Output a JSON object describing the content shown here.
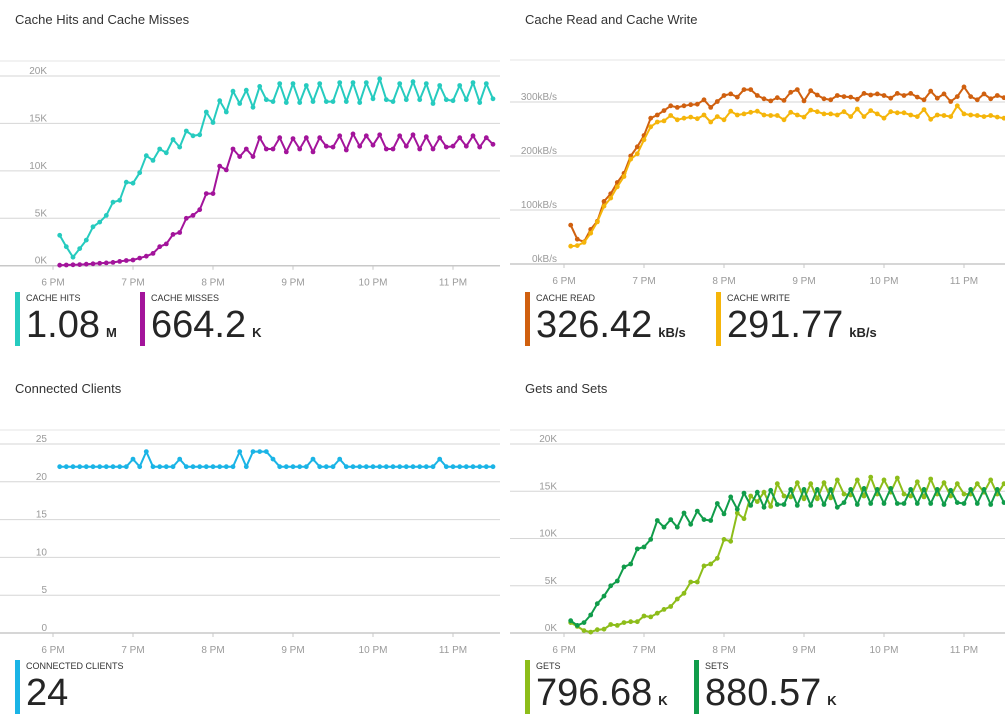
{
  "colors": {
    "cache_hits": "#26cbbf",
    "cache_misses": "#a3149b",
    "cache_read": "#d0600f",
    "cache_write": "#f5b50a",
    "connected_clients": "#1ab4e6",
    "gets": "#8dbd1a",
    "sets": "#109c4a",
    "grid": "#d6d6d6",
    "axis_text": "#9a9a9a"
  },
  "panels": [
    {
      "title": "Cache Hits and Cache Misses",
      "legend": [
        {
          "label": "CACHE HITS",
          "value": "1.08",
          "unit": "M"
        },
        {
          "label": "CACHE MISSES",
          "value": "664.2",
          "unit": "K"
        }
      ]
    },
    {
      "title": "Cache Read and Cache Write",
      "legend": [
        {
          "label": "CACHE READ",
          "value": "326.42",
          "unit": "kB/s"
        },
        {
          "label": "CACHE WRITE",
          "value": "291.77",
          "unit": "kB/s"
        }
      ]
    },
    {
      "title": "Connected Clients",
      "legend": [
        {
          "label": "CONNECTED CLIENTS",
          "value": "24",
          "unit": ""
        }
      ]
    },
    {
      "title": "Gets and Sets",
      "legend": [
        {
          "label": "GETS",
          "value": "796.68",
          "unit": "K"
        },
        {
          "label": "SETS",
          "value": "880.57",
          "unit": "K"
        }
      ]
    }
  ],
  "chart_data": [
    {
      "type": "line",
      "title": "Cache Hits and Cache Misses",
      "grid": true,
      "xticks": [
        "6 PM",
        "7 PM",
        "8 PM",
        "9 PM",
        "10 PM",
        "11 PM"
      ],
      "yticks": [
        {
          "value": 0,
          "label": "0K"
        },
        {
          "value": 5000,
          "label": "5K"
        },
        {
          "value": 10000,
          "label": "10K"
        },
        {
          "value": 15000,
          "label": "15K"
        },
        {
          "value": 20000,
          "label": "20K"
        }
      ],
      "x": [
        "6:05 PM",
        "6:10 PM",
        "6:15 PM",
        "6:20 PM",
        "6:25 PM",
        "6:30 PM",
        "6:35 PM",
        "6:40 PM",
        "6:45 PM",
        "6:50 PM",
        "6:55 PM",
        "7:00 PM",
        "7:05 PM",
        "7:10 PM",
        "7:15 PM",
        "7:20 PM",
        "7:25 PM",
        "7:30 PM",
        "7:35 PM",
        "7:40 PM",
        "7:45 PM",
        "7:50 PM",
        "7:55 PM",
        "8:00 PM",
        "8:05 PM",
        "8:10 PM",
        "8:15 PM",
        "8:20 PM",
        "8:25 PM",
        "8:30 PM",
        "8:35 PM",
        "8:40 PM",
        "8:45 PM",
        "8:50 PM",
        "8:55 PM",
        "9:00 PM",
        "9:05 PM",
        "9:10 PM",
        "9:15 PM",
        "9:20 PM",
        "9:25 PM",
        "9:30 PM",
        "9:35 PM",
        "9:40 PM",
        "9:45 PM",
        "9:50 PM",
        "9:55 PM",
        "10:00 PM",
        "10:05 PM",
        "10:10 PM",
        "10:15 PM",
        "10:20 PM",
        "10:25 PM",
        "10:30 PM",
        "10:35 PM",
        "10:40 PM",
        "10:45 PM",
        "10:50 PM",
        "10:55 PM",
        "11:00 PM",
        "11:05 PM",
        "11:10 PM",
        "11:15 PM",
        "11:20 PM",
        "11:25 PM",
        "11:30 PM"
      ],
      "series": [
        {
          "name": "CACHE HITS",
          "color_key": "cache_hits",
          "values": [
            3200,
            2000,
            900,
            1800,
            2700,
            4100,
            4600,
            5300,
            6700,
            6900,
            8800,
            8700,
            9800,
            11600,
            11100,
            12300,
            11900,
            13300,
            12500,
            14200,
            13700,
            13800,
            16200,
            15100,
            17400,
            16200,
            18400,
            17100,
            18500,
            16700,
            18900,
            17500,
            17300,
            19200,
            17200,
            19200,
            17200,
            19000,
            17300,
            19200,
            17300,
            17300,
            19300,
            17300,
            19300,
            17200,
            19300,
            17600,
            19700,
            17500,
            17300,
            19200,
            17500,
            19400,
            17500,
            19200,
            17100,
            19000,
            17500,
            17400,
            19000,
            17500,
            19300,
            17200,
            19200,
            17600
          ]
        },
        {
          "name": "CACHE MISSES",
          "color_key": "cache_misses",
          "values": [
            50,
            70,
            100,
            120,
            160,
            200,
            250,
            300,
            350,
            450,
            550,
            600,
            800,
            1000,
            1300,
            2000,
            2300,
            3300,
            3500,
            5000,
            5300,
            5900,
            7600,
            7600,
            10500,
            10100,
            12300,
            11500,
            12300,
            11500,
            13500,
            12300,
            12300,
            13500,
            12000,
            13400,
            12300,
            13500,
            12000,
            13500,
            12600,
            12500,
            13700,
            12200,
            13900,
            12600,
            13700,
            12700,
            13800,
            12300,
            12300,
            13700,
            12600,
            13800,
            12300,
            13600,
            12300,
            13500,
            12500,
            12600,
            13500,
            12600,
            13700,
            12500,
            13500,
            12800
          ]
        }
      ]
    },
    {
      "type": "line",
      "title": "Cache Read and Cache Write",
      "grid": true,
      "xticks": [
        "6 PM",
        "7 PM",
        "8 PM",
        "9 PM",
        "10 PM",
        "11 PM"
      ],
      "yticks": [
        {
          "value": 0,
          "label": "0kB/s"
        },
        {
          "value": 100,
          "label": "100kB/s"
        },
        {
          "value": 200,
          "label": "200kB/s"
        },
        {
          "value": 300,
          "label": "300kB/s"
        }
      ],
      "x": [
        "6:05 PM",
        "6:10 PM",
        "6:15 PM",
        "6:20 PM",
        "6:25 PM",
        "6:30 PM",
        "6:35 PM",
        "6:40 PM",
        "6:45 PM",
        "6:50 PM",
        "6:55 PM",
        "7:00 PM",
        "7:05 PM",
        "7:10 PM",
        "7:15 PM",
        "7:20 PM",
        "7:25 PM",
        "7:30 PM",
        "7:35 PM",
        "7:40 PM",
        "7:45 PM",
        "7:50 PM",
        "7:55 PM",
        "8:00 PM",
        "8:05 PM",
        "8:10 PM",
        "8:15 PM",
        "8:20 PM",
        "8:25 PM",
        "8:30 PM",
        "8:35 PM",
        "8:40 PM",
        "8:45 PM",
        "8:50 PM",
        "8:55 PM",
        "9:00 PM",
        "9:05 PM",
        "9:10 PM",
        "9:15 PM",
        "9:20 PM",
        "9:25 PM",
        "9:30 PM",
        "9:35 PM",
        "9:40 PM",
        "9:45 PM",
        "9:50 PM",
        "9:55 PM",
        "10:00 PM",
        "10:05 PM",
        "10:10 PM",
        "10:15 PM",
        "10:20 PM",
        "10:25 PM",
        "10:30 PM",
        "10:35 PM",
        "10:40 PM",
        "10:45 PM",
        "10:50 PM",
        "10:55 PM",
        "11:00 PM",
        "11:05 PM",
        "11:10 PM",
        "11:15 PM",
        "11:20 PM",
        "11:25 PM",
        "11:30 PM"
      ],
      "series": [
        {
          "name": "CACHE READ",
          "color_key": "cache_read",
          "values": [
            72,
            46,
            41,
            64,
            79,
            116,
            130,
            151,
            168,
            200,
            217,
            238,
            270,
            276,
            284,
            293,
            290,
            293,
            295,
            296,
            304,
            290,
            301,
            312,
            315,
            309,
            323,
            323,
            312,
            306,
            302,
            308,
            303,
            318,
            323,
            302,
            321,
            313,
            306,
            304,
            312,
            310,
            309,
            305,
            316,
            313,
            315,
            312,
            307,
            316,
            312,
            316,
            309,
            304,
            320,
            307,
            315,
            301,
            310,
            328,
            310,
            304,
            315,
            306,
            312,
            308
          ]
        },
        {
          "name": "CACHE WRITE",
          "color_key": "cache_write",
          "values": [
            33,
            34,
            40,
            57,
            78,
            107,
            122,
            143,
            162,
            194,
            204,
            230,
            254,
            263,
            265,
            275,
            267,
            270,
            272,
            269,
            276,
            263,
            273,
            267,
            283,
            276,
            278,
            281,
            283,
            276,
            275,
            275,
            267,
            281,
            276,
            272,
            285,
            282,
            278,
            278,
            276,
            282,
            273,
            287,
            273,
            284,
            278,
            270,
            282,
            280,
            280,
            276,
            273,
            286,
            268,
            276,
            275,
            273,
            293,
            278,
            276,
            275,
            273,
            275,
            272,
            270
          ]
        }
      ]
    },
    {
      "type": "line",
      "title": "Connected Clients",
      "grid": true,
      "xticks": [
        "6 PM",
        "7 PM",
        "8 PM",
        "9 PM",
        "10 PM",
        "11 PM"
      ],
      "yticks": [
        {
          "value": 0,
          "label": "0"
        },
        {
          "value": 5,
          "label": "5"
        },
        {
          "value": 10,
          "label": "10"
        },
        {
          "value": 15,
          "label": "15"
        },
        {
          "value": 20,
          "label": "20"
        },
        {
          "value": 25,
          "label": "25"
        }
      ],
      "x": [
        "6:05 PM",
        "6:10 PM",
        "6:15 PM",
        "6:20 PM",
        "6:25 PM",
        "6:30 PM",
        "6:35 PM",
        "6:40 PM",
        "6:45 PM",
        "6:50 PM",
        "6:55 PM",
        "7:00 PM",
        "7:05 PM",
        "7:10 PM",
        "7:15 PM",
        "7:20 PM",
        "7:25 PM",
        "7:30 PM",
        "7:35 PM",
        "7:40 PM",
        "7:45 PM",
        "7:50 PM",
        "7:55 PM",
        "8:00 PM",
        "8:05 PM",
        "8:10 PM",
        "8:15 PM",
        "8:20 PM",
        "8:25 PM",
        "8:30 PM",
        "8:35 PM",
        "8:40 PM",
        "8:45 PM",
        "8:50 PM",
        "8:55 PM",
        "9:00 PM",
        "9:05 PM",
        "9:10 PM",
        "9:15 PM",
        "9:20 PM",
        "9:25 PM",
        "9:30 PM",
        "9:35 PM",
        "9:40 PM",
        "9:45 PM",
        "9:50 PM",
        "9:55 PM",
        "10:00 PM",
        "10:05 PM",
        "10:10 PM",
        "10:15 PM",
        "10:20 PM",
        "10:25 PM",
        "10:30 PM",
        "10:35 PM",
        "10:40 PM",
        "10:45 PM",
        "10:50 PM",
        "10:55 PM",
        "11:00 PM",
        "11:05 PM",
        "11:10 PM",
        "11:15 PM",
        "11:20 PM",
        "11:25 PM",
        "11:30 PM"
      ],
      "series": [
        {
          "name": "CONNECTED CLIENTS",
          "color_key": "connected_clients",
          "values": [
            22,
            22,
            22,
            22,
            22,
            22,
            22,
            22,
            22,
            22,
            22,
            23,
            22,
            24,
            22,
            22,
            22,
            22,
            23,
            22,
            22,
            22,
            22,
            22,
            22,
            22,
            22,
            24,
            22,
            24,
            24,
            24,
            23,
            22,
            22,
            22,
            22,
            22,
            23,
            22,
            22,
            22,
            23,
            22,
            22,
            22,
            22,
            22,
            22,
            22,
            22,
            22,
            22,
            22,
            22,
            22,
            22,
            23,
            22,
            22,
            22,
            22,
            22,
            22,
            22,
            22
          ]
        }
      ]
    },
    {
      "type": "line",
      "title": "Gets and Sets",
      "grid": true,
      "xticks": [
        "6 PM",
        "7 PM",
        "8 PM",
        "9 PM",
        "10 PM",
        "11 PM"
      ],
      "yticks": [
        {
          "value": 0,
          "label": "0K"
        },
        {
          "value": 5000,
          "label": "5K"
        },
        {
          "value": 10000,
          "label": "10K"
        },
        {
          "value": 15000,
          "label": "15K"
        },
        {
          "value": 20000,
          "label": "20K"
        }
      ],
      "x": [
        "6:05 PM",
        "6:10 PM",
        "6:15 PM",
        "6:20 PM",
        "6:25 PM",
        "6:30 PM",
        "6:35 PM",
        "6:40 PM",
        "6:45 PM",
        "6:50 PM",
        "6:55 PM",
        "7:00 PM",
        "7:05 PM",
        "7:10 PM",
        "7:15 PM",
        "7:20 PM",
        "7:25 PM",
        "7:30 PM",
        "7:35 PM",
        "7:40 PM",
        "7:45 PM",
        "7:50 PM",
        "7:55 PM",
        "8:00 PM",
        "8:05 PM",
        "8:10 PM",
        "8:15 PM",
        "8:20 PM",
        "8:25 PM",
        "8:30 PM",
        "8:35 PM",
        "8:40 PM",
        "8:45 PM",
        "8:50 PM",
        "8:55 PM",
        "9:00 PM",
        "9:05 PM",
        "9:10 PM",
        "9:15 PM",
        "9:20 PM",
        "9:25 PM",
        "9:30 PM",
        "9:35 PM",
        "9:40 PM",
        "9:45 PM",
        "9:50 PM",
        "9:55 PM",
        "10:00 PM",
        "10:05 PM",
        "10:10 PM",
        "10:15 PM",
        "10:20 PM",
        "10:25 PM",
        "10:30 PM",
        "10:35 PM",
        "10:40 PM",
        "10:45 PM",
        "10:50 PM",
        "10:55 PM",
        "11:00 PM",
        "11:05 PM",
        "11:10 PM",
        "11:15 PM",
        "11:20 PM",
        "11:25 PM",
        "11:30 PM"
      ],
      "series": [
        {
          "name": "GETS",
          "color_key": "gets",
          "values": [
            1100,
            700,
            250,
            100,
            350,
            400,
            900,
            800,
            1100,
            1200,
            1200,
            1800,
            1700,
            2100,
            2500,
            2800,
            3600,
            4200,
            5400,
            5400,
            7100,
            7300,
            7900,
            9900,
            9700,
            12700,
            12100,
            14500,
            13900,
            14900,
            13400,
            15800,
            14500,
            14400,
            15900,
            14200,
            15800,
            14200,
            15900,
            14300,
            16200,
            14700,
            14600,
            16200,
            14500,
            16500,
            14700,
            16200,
            14900,
            16400,
            14700,
            14500,
            16000,
            14400,
            16300,
            14700,
            15900,
            14500,
            15800,
            14700,
            14700,
            15800,
            14900,
            16200,
            14700,
            15800
          ]
        },
        {
          "name": "SETS",
          "color_key": "sets",
          "values": [
            1300,
            800,
            1100,
            1900,
            3100,
            3900,
            5000,
            5500,
            7000,
            7300,
            8900,
            9100,
            9900,
            11900,
            11200,
            12000,
            11200,
            12700,
            11500,
            12900,
            12000,
            11900,
            13700,
            12600,
            14400,
            13100,
            14800,
            13500,
            14900,
            13300,
            15100,
            13600,
            13600,
            15200,
            13500,
            15200,
            13500,
            15200,
            13600,
            15200,
            13300,
            13800,
            15200,
            13600,
            15300,
            13700,
            15200,
            13700,
            15300,
            13700,
            13700,
            15200,
            13700,
            15200,
            13700,
            15200,
            13600,
            15100,
            13800,
            13700,
            15200,
            13700,
            15200,
            13600,
            15200,
            13800
          ]
        }
      ]
    }
  ]
}
